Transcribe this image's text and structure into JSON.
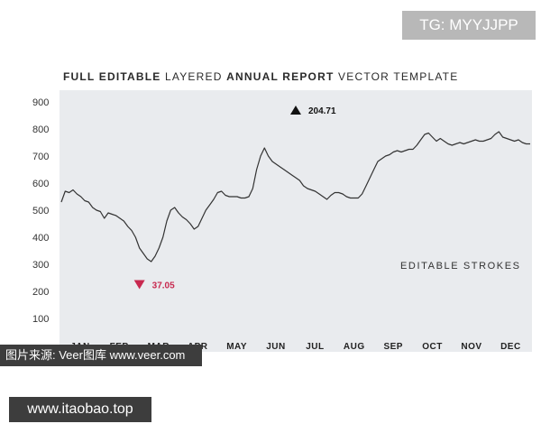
{
  "watermark_top": "TG: MYYJJPP",
  "watermark_mid": "图片来源: Veer图库 www.veer.com",
  "watermark_bottom": "www.itaobao.top",
  "title_parts": [
    "FULL EDITABLE",
    "LAYERED",
    "ANNUAL REPORT",
    "VECTOR TEMPLATE"
  ],
  "side_label": "EDITABLE STROKES",
  "colors": {
    "background": "#e9ebee",
    "line": "#333333",
    "max_marker": "#111111",
    "min_marker": "#c8294f"
  },
  "chart_data": {
    "type": "line",
    "title": "FULL EDITABLE LAYERED ANNUAL REPORT VECTOR TEMPLATE",
    "xlabel": "",
    "ylabel": "",
    "ylim": [
      0,
      900
    ],
    "yticks": [
      "900",
      "800",
      "700",
      "600",
      "500",
      "400",
      "300",
      "200",
      "100"
    ],
    "yticks_values": [
      900,
      800,
      700,
      600,
      500,
      400,
      300,
      200,
      100
    ],
    "categories": [
      "JAN",
      "FEB",
      "MAR",
      "APR",
      "MAY",
      "JUN",
      "JUL",
      "AUG",
      "SEP",
      "OCT",
      "NOV",
      "DEC"
    ],
    "grid": false,
    "annotations": [
      {
        "label": "204.71",
        "type": "max",
        "x": 6.0,
        "y": 730
      },
      {
        "label": "37.05",
        "type": "min",
        "x": 2.0,
        "y": 315
      }
    ],
    "series": [
      {
        "values": [
          [
            0.0,
            530
          ],
          [
            0.1,
            570
          ],
          [
            0.2,
            565
          ],
          [
            0.3,
            575
          ],
          [
            0.4,
            560
          ],
          [
            0.5,
            550
          ],
          [
            0.6,
            535
          ],
          [
            0.7,
            530
          ],
          [
            0.8,
            510
          ],
          [
            0.9,
            500
          ],
          [
            1.0,
            495
          ],
          [
            1.1,
            470
          ],
          [
            1.2,
            490
          ],
          [
            1.3,
            485
          ],
          [
            1.4,
            480
          ],
          [
            1.5,
            470
          ],
          [
            1.6,
            460
          ],
          [
            1.7,
            440
          ],
          [
            1.8,
            425
          ],
          [
            1.9,
            400
          ],
          [
            2.0,
            360
          ],
          [
            2.1,
            340
          ],
          [
            2.2,
            320
          ],
          [
            2.3,
            310
          ],
          [
            2.4,
            330
          ],
          [
            2.5,
            360
          ],
          [
            2.6,
            400
          ],
          [
            2.7,
            460
          ],
          [
            2.8,
            500
          ],
          [
            2.9,
            510
          ],
          [
            3.0,
            490
          ],
          [
            3.1,
            475
          ],
          [
            3.2,
            465
          ],
          [
            3.3,
            450
          ],
          [
            3.4,
            430
          ],
          [
            3.5,
            440
          ],
          [
            3.6,
            470
          ],
          [
            3.7,
            500
          ],
          [
            3.8,
            520
          ],
          [
            3.9,
            540
          ],
          [
            4.0,
            565
          ],
          [
            4.1,
            570
          ],
          [
            4.2,
            555
          ],
          [
            4.3,
            550
          ],
          [
            4.4,
            550
          ],
          [
            4.5,
            550
          ],
          [
            4.6,
            545
          ],
          [
            4.7,
            545
          ],
          [
            4.8,
            550
          ],
          [
            4.9,
            580
          ],
          [
            5.0,
            650
          ],
          [
            5.1,
            700
          ],
          [
            5.2,
            730
          ],
          [
            5.3,
            700
          ],
          [
            5.4,
            680
          ],
          [
            5.5,
            670
          ],
          [
            5.6,
            660
          ],
          [
            5.7,
            650
          ],
          [
            5.8,
            640
          ],
          [
            5.9,
            630
          ],
          [
            6.0,
            620
          ],
          [
            6.1,
            610
          ],
          [
            6.2,
            590
          ],
          [
            6.3,
            580
          ],
          [
            6.4,
            575
          ],
          [
            6.5,
            570
          ],
          [
            6.6,
            560
          ],
          [
            6.7,
            550
          ],
          [
            6.8,
            540
          ],
          [
            6.9,
            555
          ],
          [
            7.0,
            565
          ],
          [
            7.1,
            565
          ],
          [
            7.2,
            560
          ],
          [
            7.3,
            550
          ],
          [
            7.4,
            545
          ],
          [
            7.5,
            545
          ],
          [
            7.6,
            545
          ],
          [
            7.7,
            560
          ],
          [
            7.8,
            590
          ],
          [
            7.9,
            620
          ],
          [
            8.0,
            650
          ],
          [
            8.1,
            680
          ],
          [
            8.2,
            690
          ],
          [
            8.3,
            700
          ],
          [
            8.4,
            705
          ],
          [
            8.5,
            715
          ],
          [
            8.6,
            720
          ],
          [
            8.7,
            715
          ],
          [
            8.8,
            720
          ],
          [
            8.9,
            725
          ],
          [
            9.0,
            725
          ],
          [
            9.1,
            740
          ],
          [
            9.2,
            760
          ],
          [
            9.3,
            780
          ],
          [
            9.4,
            785
          ],
          [
            9.5,
            770
          ],
          [
            9.6,
            755
          ],
          [
            9.7,
            765
          ],
          [
            9.8,
            755
          ],
          [
            9.9,
            745
          ],
          [
            10.0,
            740
          ],
          [
            10.1,
            745
          ],
          [
            10.2,
            750
          ],
          [
            10.3,
            745
          ],
          [
            10.4,
            750
          ],
          [
            10.5,
            755
          ],
          [
            10.6,
            760
          ],
          [
            10.7,
            755
          ],
          [
            10.8,
            755
          ],
          [
            10.9,
            760
          ],
          [
            11.0,
            765
          ],
          [
            11.1,
            780
          ],
          [
            11.2,
            790
          ],
          [
            11.3,
            770
          ],
          [
            11.4,
            765
          ],
          [
            11.5,
            760
          ],
          [
            11.6,
            755
          ],
          [
            11.7,
            760
          ],
          [
            11.8,
            750
          ],
          [
            11.9,
            745
          ],
          [
            12.0,
            745
          ]
        ]
      }
    ]
  }
}
